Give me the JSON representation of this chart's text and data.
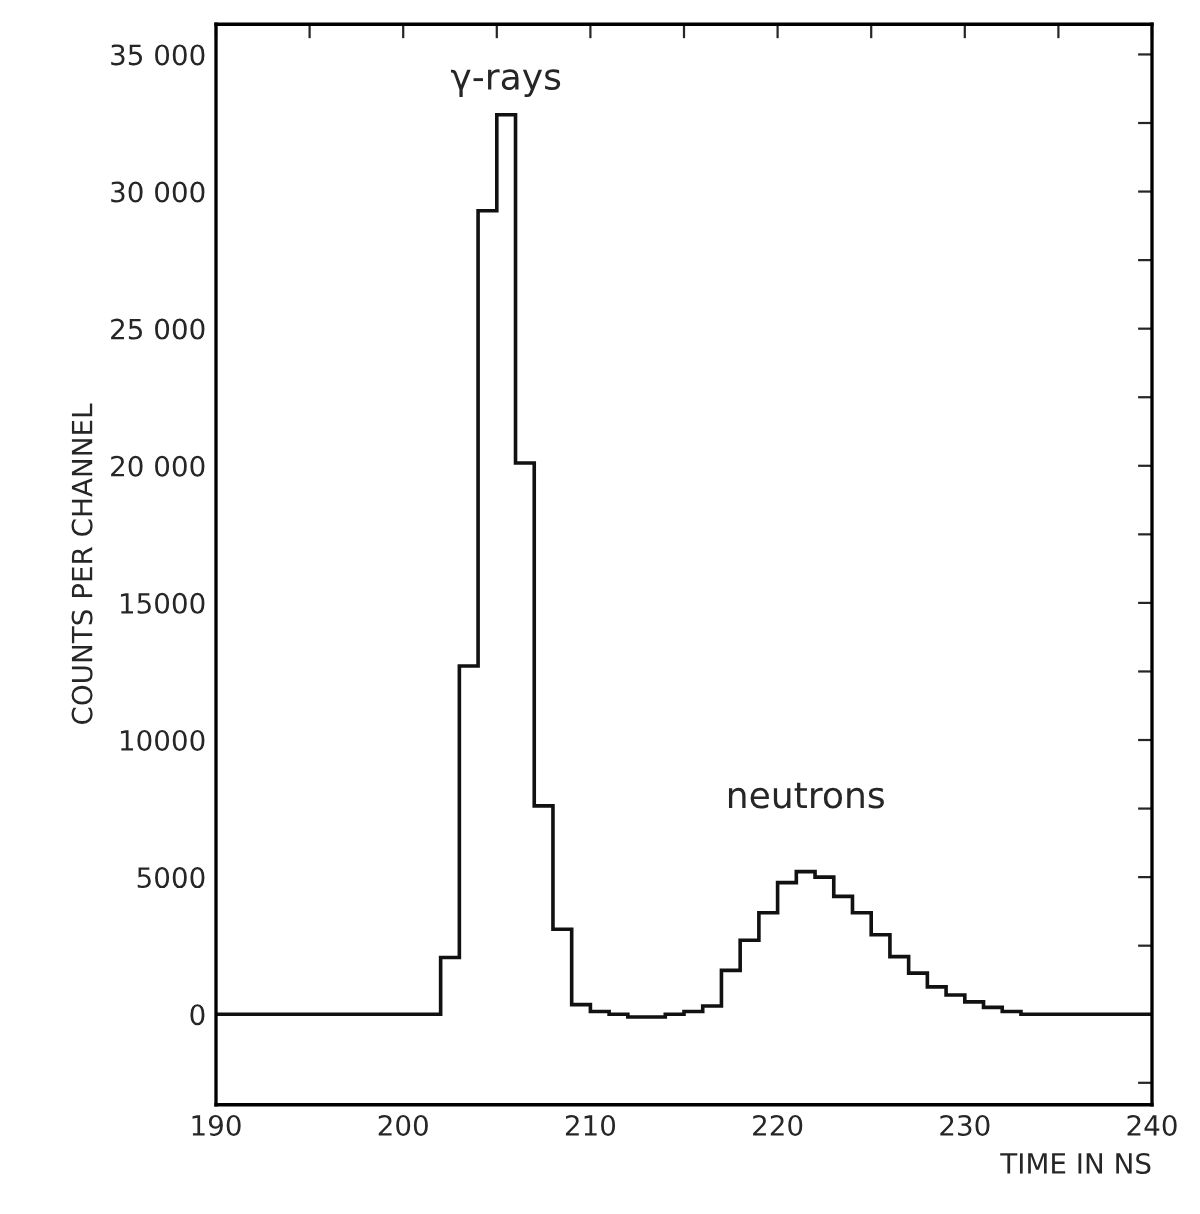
{
  "chart_data": {
    "type": "histogram",
    "xlabel": "TIME IN NS",
    "ylabel": "COUNTS PER CHANNEL",
    "bins": [
      190,
      191,
      192,
      193,
      194,
      195,
      196,
      197,
      198,
      199,
      200,
      201,
      202,
      203,
      204,
      205,
      206,
      207,
      208,
      209,
      210,
      211,
      212,
      213,
      214,
      215,
      216,
      217,
      218,
      219,
      220,
      221,
      222,
      223,
      224,
      225,
      226,
      227,
      228,
      229,
      230,
      231,
      232,
      233,
      234,
      235,
      236,
      237,
      238,
      239,
      240
    ],
    "values": [
      0,
      0,
      0,
      0,
      0,
      0,
      0,
      0,
      0,
      0,
      0,
      0,
      2070,
      12700,
      29300,
      32800,
      20100,
      7600,
      3100,
      350,
      100,
      0,
      -100,
      -100,
      0,
      100,
      300,
      1600,
      2700,
      3700,
      4800,
      5200,
      5000,
      4300,
      3700,
      2900,
      2100,
      1500,
      1000,
      700,
      450,
      250,
      100,
      0,
      0,
      0,
      0,
      0,
      0,
      0
    ],
    "color": "#111111",
    "annotations": [
      "γ-rays",
      "neutrons"
    ],
    "xlim": [
      190,
      240
    ],
    "xticks": [
      190,
      {
        "value": 195,
        "label": null
      },
      200,
      {
        "value": 205,
        "label": null
      },
      210,
      {
        "value": 215,
        "label": null
      },
      220,
      {
        "value": 225,
        "label": null
      },
      230,
      {
        "value": 235,
        "label": null
      },
      240
    ],
    "ylim": [
      -3300,
      36100
    ],
    "yticks": [
      {
        "value": -2500,
        "label": null
      },
      0,
      {
        "value": 2500,
        "label": null
      },
      5000,
      {
        "value": 7500,
        "label": null
      },
      10000,
      {
        "value": 12500,
        "label": null
      },
      15000,
      {
        "value": 17500,
        "label": null
      },
      {
        "value": 20000,
        "label": "20 000"
      },
      {
        "value": 22500,
        "label": null
      },
      {
        "value": 25000,
        "label": "25 000"
      },
      {
        "value": 27500,
        "label": null
      },
      {
        "value": 30000,
        "label": "30 000"
      },
      {
        "value": 32500,
        "label": null
      },
      {
        "value": 35000,
        "label": "35 000"
      }
    ],
    "grid": false,
    "legend": false
  }
}
